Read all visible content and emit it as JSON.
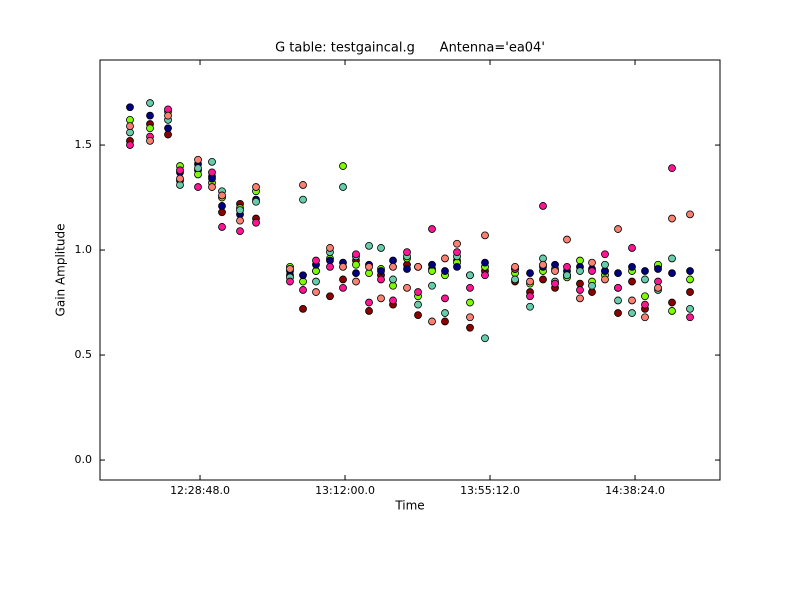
{
  "chart_data": {
    "type": "scatter",
    "title": "G table: testgaincal.g      Antenna='ea04'",
    "xlabel": "Time",
    "ylabel": "Gain Amplitude",
    "xlim": [
      43140,
      54223
    ],
    "ylim": [
      -0.095,
      1.905
    ],
    "xticks": [
      {
        "value": 44928,
        "label": "12:28:48.0"
      },
      {
        "value": 47520,
        "label": "13:12:00.0"
      },
      {
        "value": 50112,
        "label": "13:55:12.0"
      },
      {
        "value": 52704,
        "label": "14:38:24.0"
      }
    ],
    "yticks": [
      {
        "value": 0,
        "label": "0.0"
      },
      0.5,
      {
        "value": 1,
        "label": "1.0"
      },
      1.5
    ],
    "grid": false,
    "x": [
      43676,
      44034,
      44356,
      44570,
      44892,
      45142,
      45321,
      45643,
      45929,
      46536,
      46769,
      47001,
      47251,
      47484,
      47716,
      47949,
      48163,
      48378,
      48628,
      48825,
      49075,
      49307,
      49522,
      49754,
      50022,
      50559,
      50827,
      51059,
      51274,
      51488,
      51720,
      51935,
      52167,
      52400,
      52650,
      52882,
      53115,
      53365,
      53687
    ],
    "series": [
      {
        "color": "#8b0000",
        "values": [
          1.52,
          1.6,
          1.55,
          1.33,
          1.38,
          1.35,
          1.18,
          1.22,
          1.15,
          0.88,
          0.72,
          0.9,
          0.78,
          0.86,
          0.95,
          0.71,
          0.88,
          0.74,
          0.93,
          0.69,
          0.91,
          0.66,
          0.95,
          0.63,
          0.9,
          0.85,
          0.8,
          0.86,
          0.82,
          0.88,
          0.84,
          0.8,
          0.9,
          0.7,
          0.85,
          0.72,
          0.92,
          0.75,
          0.8
        ]
      },
      {
        "color": "#7cfc00",
        "values": [
          1.62,
          1.58,
          1.66,
          1.4,
          1.36,
          1.32,
          1.25,
          1.2,
          1.28,
          0.92,
          0.85,
          0.9,
          0.96,
          1.4,
          0.93,
          0.89,
          0.91,
          0.83,
          0.96,
          0.78,
          0.9,
          0.88,
          0.94,
          0.75,
          0.92,
          0.89,
          0.84,
          0.9,
          0.91,
          0.87,
          0.95,
          0.85,
          0.88,
          0.82,
          0.9,
          0.78,
          0.93,
          0.71,
          0.86
        ]
      },
      {
        "color": "#000080",
        "values": [
          1.68,
          1.64,
          1.58,
          1.37,
          1.41,
          1.34,
          1.21,
          1.17,
          1.24,
          0.9,
          0.88,
          0.93,
          0.95,
          0.94,
          0.89,
          0.93,
          0.9,
          0.95,
          0.91,
          0.92,
          0.93,
          0.9,
          0.92,
          0.88,
          0.94,
          0.91,
          0.89,
          0.92,
          0.93,
          0.9,
          0.92,
          0.91,
          0.9,
          0.89,
          0.92,
          0.9,
          0.91,
          0.89,
          0.9
        ]
      },
      {
        "color": "#66cdaa",
        "values": [
          1.56,
          1.7,
          1.62,
          1.31,
          1.39,
          1.42,
          1.28,
          1.19,
          1.23,
          0.87,
          1.24,
          0.85,
          0.99,
          1.3,
          0.97,
          1.02,
          1.01,
          0.86,
          0.97,
          0.74,
          0.83,
          0.7,
          0.97,
          0.88,
          0.58,
          0.86,
          0.73,
          0.96,
          0.85,
          0.88,
          0.9,
          0.83,
          0.93,
          0.76,
          0.7,
          0.86,
          0.81,
          0.96,
          0.72
        ]
      },
      {
        "color": "#ff1493",
        "values": [
          1.5,
          1.54,
          1.67,
          1.38,
          1.3,
          1.37,
          1.11,
          1.09,
          1.13,
          0.85,
          0.81,
          0.95,
          0.92,
          0.82,
          0.98,
          0.75,
          0.86,
          0.76,
          0.99,
          0.8,
          1.1,
          0.77,
          0.99,
          0.82,
          0.88,
          0.91,
          0.78,
          1.21,
          0.84,
          0.92,
          0.81,
          0.9,
          0.98,
          0.82,
          1.01,
          0.74,
          0.85,
          1.39,
          0.68
        ]
      },
      {
        "color": "#fa8072",
        "values": [
          1.59,
          1.52,
          1.64,
          1.34,
          1.43,
          1.3,
          1.26,
          1.14,
          1.3,
          0.91,
          1.31,
          0.8,
          1.01,
          0.92,
          0.85,
          0.92,
          0.77,
          0.92,
          0.82,
          0.92,
          0.66,
          0.96,
          1.03,
          0.68,
          1.07,
          0.92,
          0.85,
          0.93,
          0.9,
          1.05,
          0.77,
          0.94,
          0.86,
          1.1,
          0.76,
          0.68,
          0.82,
          1.15,
          1.17
        ]
      }
    ]
  }
}
